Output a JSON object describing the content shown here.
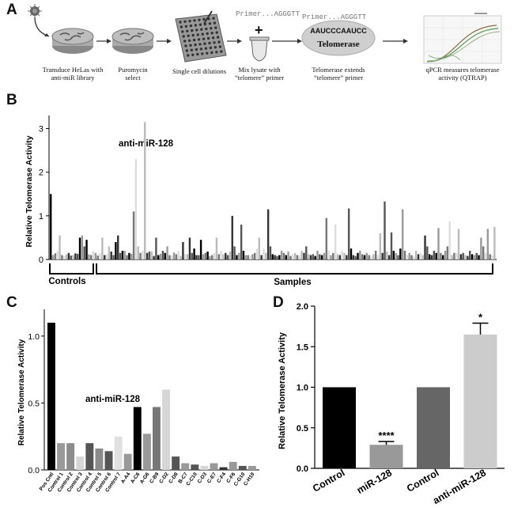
{
  "panels": {
    "A": "A",
    "B": "B",
    "C": "C",
    "D": "D"
  },
  "workflow": {
    "step1": [
      "Transduce HeLas with",
      "anti-miR library"
    ],
    "step2": [
      "Puromycin",
      "select"
    ],
    "step3": [
      "Single cell dilutions"
    ],
    "step4": [
      "Mix lysate with",
      "“telomere” primer"
    ],
    "step5": [
      "Telomerase extends",
      "“telomere” primer"
    ],
    "step6": [
      "qPCR measures telomerase",
      "activity (QTRAP)"
    ],
    "primer_a": "Primer...AGGGTT",
    "primer_b": "Primer...AGGGTT",
    "template": "AAUCCCAAUCC",
    "enzyme": "Telomerase",
    "plus": "+"
  },
  "chart_data": [
    {
      "id": "B",
      "type": "bar",
      "ylabel": "Relative Telomerase Activity",
      "ylim": [
        0,
        3.3
      ],
      "yticks": [
        "0",
        "1",
        "2",
        "3"
      ],
      "annotation": "anti-miR-128",
      "group_labels": [
        "Controls",
        "Samples"
      ],
      "values": [
        1.5,
        0.1,
        0.14,
        0.2,
        0.55,
        0.1,
        0.08,
        0.12,
        0.15,
        0.09,
        0.1,
        0.14,
        0.13,
        0.5,
        0.55,
        0.3,
        0.45,
        0.12,
        0.1,
        0.2,
        0.15,
        0.09,
        0.14,
        0.5,
        0.1,
        0.12,
        0.3,
        0.18,
        0.1,
        0.4,
        0.55,
        0.15,
        0.2,
        0.2,
        0.1,
        0.15,
        0.13,
        1.1,
        2.3,
        0.3,
        0.15,
        0.2,
        3.15,
        0.15,
        0.18,
        0.18,
        0.08,
        0.5,
        0.1,
        0.13,
        0.2,
        0.15,
        0.3,
        0.1,
        0.09,
        0.16,
        0.12,
        0.2,
        0.08,
        0.4,
        0.12,
        0.12,
        0.5,
        0.15,
        0.25,
        0.1,
        0.1,
        0.45,
        0.12,
        0.15,
        0.18,
        0.08,
        0.1,
        0.15,
        0.5,
        0.12,
        0.2,
        0.12,
        0.15,
        0.1,
        0.18,
        1.0,
        0.3,
        0.1,
        0.15,
        0.8,
        0.2,
        0.1,
        0.1,
        0.08,
        0.12,
        0.15,
        0.25,
        0.5,
        0.1,
        0.25,
        0.15,
        1.15,
        0.3,
        0.12,
        0.1,
        0.08,
        0.1,
        0.2,
        0.15,
        0.1,
        0.18,
        0.08,
        0.12,
        0.15,
        0.1,
        0.1,
        0.2,
        0.15,
        0.3,
        0.12,
        0.1,
        0.12,
        0.08,
        0.2,
        0.12,
        0.1,
        0.15,
        0.95,
        0.2,
        0.1,
        0.15,
        0.8,
        0.12,
        0.1,
        0.2,
        0.15,
        0.1,
        1.17,
        0.25,
        0.1,
        0.08,
        0.15,
        0.2,
        0.12,
        0.1,
        0.15,
        0.1,
        0.08,
        0.12,
        0.2,
        0.1,
        0.6,
        0.15,
        1.33,
        0.18,
        0.1,
        0.62,
        0.2,
        0.15,
        0.1,
        0.25,
        1.15,
        0.2,
        0.1,
        0.15,
        0.1,
        0.08,
        0.2,
        0.12,
        0.15,
        0.1,
        0.55,
        0.3,
        0.12,
        0.1,
        0.2,
        0.15,
        0.72,
        0.15,
        0.1,
        0.2,
        0.3,
        0.87,
        0.1,
        0.15,
        0.15,
        0.7,
        0.12,
        0.15,
        0.1,
        0.08,
        0.2,
        0.12,
        0.1,
        0.15,
        0.1,
        0.5,
        0.3,
        0.15,
        0.7,
        0.12,
        0.1,
        0.75
      ],
      "colors": [
        "#000000",
        "#777777",
        "#bbbbbb",
        "#555555",
        "#999999",
        "#dddddd",
        "#333333"
      ]
    },
    {
      "id": "C",
      "type": "bar",
      "ylabel": "Relative Telomerase Activity",
      "ylim": [
        0,
        1.2
      ],
      "yticks": [
        "0.0",
        "0.5",
        "1.0"
      ],
      "annotation": "anti-miR-128",
      "categories": [
        "Pos Cntl",
        "Control 1",
        "Control 2",
        "Control 3",
        "Control 4",
        "Control 5",
        "Control 6",
        "Control 7",
        "A-A4",
        "A-C6",
        "A-G6",
        "C-B9",
        "C-D2",
        "C-D8",
        "B-C7",
        "C-C10",
        "C-D3",
        "C-E7",
        "C-F4",
        "C-F6",
        "C-G10",
        "C-H10"
      ],
      "values": [
        1.1,
        0.2,
        0.2,
        0.1,
        0.2,
        0.16,
        0.14,
        0.25,
        0.12,
        0.47,
        0.27,
        0.47,
        0.6,
        0.1,
        0.05,
        0.04,
        0.03,
        0.05,
        0.02,
        0.06,
        0.03,
        0.03
      ],
      "colors": [
        "#000000",
        "#999999",
        "#8c8c8c",
        "#d6d6d6",
        "#555555",
        "#8a8a8a",
        "#555555",
        "#e0e0e0",
        "#999999",
        "#000000",
        "#999999",
        "#777777",
        "#d6d6d6",
        "#555555",
        "#999999",
        "#555555",
        "#d6d6d6",
        "#999999",
        "#333333",
        "#999999",
        "#555555",
        "#999999"
      ]
    },
    {
      "id": "D",
      "type": "bar",
      "ylabel": "Relative Telomerase Activity",
      "ylim": [
        0,
        2.0
      ],
      "yticks": [
        "0.0",
        "0.5",
        "1.0",
        "1.5",
        "2.0"
      ],
      "categories": [
        "Control",
        "miR-128",
        "Control",
        "anti-miR-128"
      ],
      "values": [
        1.0,
        0.29,
        1.0,
        1.65
      ],
      "errors": [
        0,
        0.04,
        0,
        0.14
      ],
      "significance": [
        "",
        "****",
        "",
        "*"
      ],
      "colors": [
        "#000000",
        "#999999",
        "#666666",
        "#cccccc"
      ]
    }
  ]
}
